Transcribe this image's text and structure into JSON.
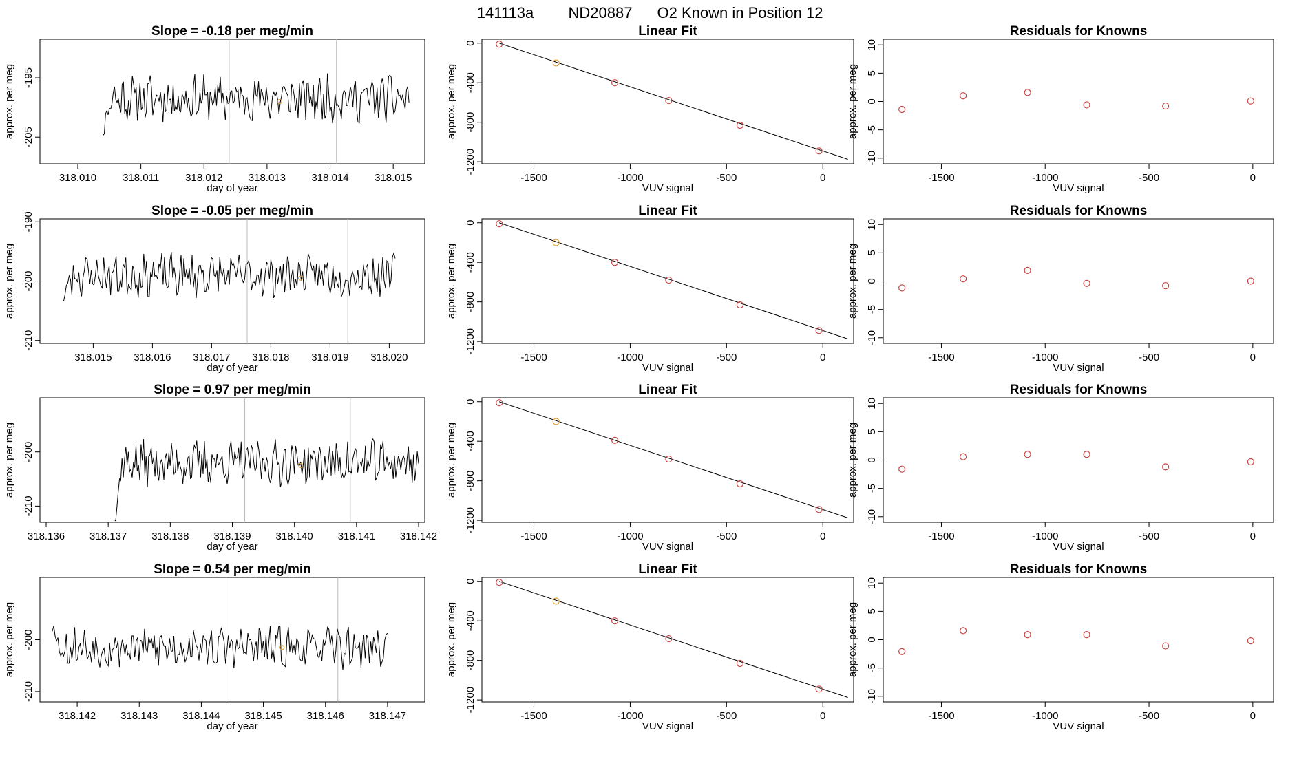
{
  "figure": {
    "title_run": "141113a",
    "title_tank": "ND20887",
    "title_desc": "O2 Known in Position  12"
  },
  "chart_data": [
    {
      "type": "line",
      "row": 0,
      "panel": "drift",
      "title": "Slope =  -0.18  per meg/min",
      "xlabel": "day of year",
      "ylabel": "approx. per meg",
      "xlim": [
        318.0094,
        318.0155
      ],
      "ylim": [
        -209.5,
        -188.5
      ],
      "xticks": [
        "318.010",
        "318.011",
        "318.012",
        "318.013",
        "318.014",
        "318.015"
      ],
      "yticks": [
        "-205",
        "-195"
      ],
      "vlines": [
        318.0124,
        318.0141
      ],
      "marker": {
        "x": 318.0132,
        "y": -199.0
      },
      "series": [
        {
          "x_start": 318.0104,
          "x_end": 318.01525,
          "mean": -198.5,
          "amp": 3.2,
          "start_y": -204,
          "seed": 11
        }
      ]
    },
    {
      "type": "scatter",
      "row": 0,
      "panel": "fit",
      "title": "Linear Fit",
      "xlabel": "VUV signal",
      "ylabel": "approx. per meg",
      "xlim": [
        -1770,
        160
      ],
      "ylim": [
        -1220,
        40
      ],
      "xticks": [
        "-1500",
        "-1000",
        "-500",
        "0"
      ],
      "yticks": [
        "0",
        "-400",
        "-800",
        "-1200"
      ],
      "line": {
        "x0": -1680,
        "y0": 0,
        "x1": 130,
        "y1": -1175
      },
      "points": [
        {
          "x": -1680,
          "y": -10,
          "color": "#cc4444"
        },
        {
          "x": -1385,
          "y": -200,
          "color": "#e0a030"
        },
        {
          "x": -1080,
          "y": -400,
          "color": "#cc4444"
        },
        {
          "x": -800,
          "y": -580,
          "color": "#cc4444"
        },
        {
          "x": -430,
          "y": -830,
          "color": "#cc4444"
        },
        {
          "x": -20,
          "y": -1090,
          "color": "#cc4444"
        }
      ]
    },
    {
      "type": "scatter",
      "row": 0,
      "panel": "resid",
      "title": "Residuals for Knowns",
      "xlabel": "VUV signal",
      "ylabel": "approx. per meg",
      "xlim": [
        -1780,
        100
      ],
      "ylim": [
        -11,
        11
      ],
      "xticks": [
        "-1500",
        "-1000",
        "-500",
        "0"
      ],
      "yticks": [
        "-10",
        "-5",
        "0",
        "5",
        "10"
      ],
      "points": [
        {
          "x": -1690,
          "y": -1.4,
          "color": "#cc4444"
        },
        {
          "x": -1395,
          "y": 1.0,
          "color": "#cc4444"
        },
        {
          "x": -1085,
          "y": 1.6,
          "color": "#cc4444"
        },
        {
          "x": -800,
          "y": -0.6,
          "color": "#cc4444"
        },
        {
          "x": -420,
          "y": -0.8,
          "color": "#cc4444"
        },
        {
          "x": -10,
          "y": 0.1,
          "color": "#cc4444"
        }
      ]
    },
    {
      "type": "line",
      "row": 1,
      "panel": "drift",
      "title": "Slope =  -0.05  per meg/min",
      "xlabel": "day of year",
      "ylabel": "approx. per meg",
      "xlim": [
        318.0141,
        318.0206
      ],
      "ylim": [
        -210.5,
        -189.5
      ],
      "xticks": [
        "318.015",
        "318.016",
        "318.017",
        "318.018",
        "318.019",
        "318.020"
      ],
      "yticks": [
        "-210",
        "-200",
        "-190"
      ],
      "vlines": [
        318.0176,
        318.0193
      ],
      "marker": {
        "x": 318.0185,
        "y": -199.5
      },
      "series": [
        {
          "x_start": 318.0145,
          "x_end": 318.0201,
          "mean": -199.0,
          "amp": 3.0,
          "start_y": -203,
          "seed": 23
        }
      ]
    },
    {
      "type": "scatter",
      "row": 1,
      "panel": "fit",
      "title": "Linear Fit",
      "xlabel": "VUV signal",
      "ylabel": "approx. per meg",
      "xlim": [
        -1770,
        160
      ],
      "ylim": [
        -1220,
        40
      ],
      "xticks": [
        "-1500",
        "-1000",
        "-500",
        "0"
      ],
      "yticks": [
        "0",
        "-400",
        "-800",
        "-1200"
      ],
      "line": {
        "x0": -1680,
        "y0": 0,
        "x1": 130,
        "y1": -1175
      },
      "points": [
        {
          "x": -1680,
          "y": -10,
          "color": "#cc4444"
        },
        {
          "x": -1385,
          "y": -200,
          "color": "#e0a030"
        },
        {
          "x": -1080,
          "y": -400,
          "color": "#cc4444"
        },
        {
          "x": -800,
          "y": -580,
          "color": "#cc4444"
        },
        {
          "x": -430,
          "y": -830,
          "color": "#cc4444"
        },
        {
          "x": -20,
          "y": -1090,
          "color": "#cc4444"
        }
      ]
    },
    {
      "type": "scatter",
      "row": 1,
      "panel": "resid",
      "title": "Residuals for Knowns",
      "xlabel": "VUV signal",
      "ylabel": "approx. per meg",
      "xlim": [
        -1780,
        100
      ],
      "ylim": [
        -11,
        11
      ],
      "xticks": [
        "-1500",
        "-1000",
        "-500",
        "0"
      ],
      "yticks": [
        "-10",
        "-5",
        "0",
        "5",
        "10"
      ],
      "points": [
        {
          "x": -1690,
          "y": -1.2,
          "color": "#cc4444"
        },
        {
          "x": -1395,
          "y": 0.4,
          "color": "#cc4444"
        },
        {
          "x": -1085,
          "y": 1.9,
          "color": "#cc4444"
        },
        {
          "x": -800,
          "y": -0.4,
          "color": "#cc4444"
        },
        {
          "x": -420,
          "y": -0.8,
          "color": "#cc4444"
        },
        {
          "x": -10,
          "y": 0.0,
          "color": "#cc4444"
        }
      ]
    },
    {
      "type": "line",
      "row": 2,
      "panel": "drift",
      "title": "Slope =  0.97  per meg/min",
      "xlabel": "day of year",
      "ylabel": "approx. per meg",
      "xlim": [
        318.1359,
        318.1421
      ],
      "ylim": [
        -213,
        -190
      ],
      "xticks": [
        "318.136",
        "318.137",
        "318.138",
        "318.139",
        "318.140",
        "318.141",
        "318.142"
      ],
      "yticks": [
        "-210",
        "-200"
      ],
      "vlines": [
        318.1392,
        318.1409
      ],
      "marker": {
        "x": 318.1401,
        "y": -202.5
      },
      "series": [
        {
          "x_start": 318.1371,
          "x_end": 318.142,
          "mean": -202.0,
          "amp": 3.4,
          "start_y": -213,
          "seed": 37
        }
      ]
    },
    {
      "type": "scatter",
      "row": 2,
      "panel": "fit",
      "title": "Linear Fit",
      "xlabel": "VUV signal",
      "ylabel": "approx. per meg",
      "xlim": [
        -1770,
        160
      ],
      "ylim": [
        -1220,
        40
      ],
      "xticks": [
        "-1500",
        "-1000",
        "-500",
        "0"
      ],
      "yticks": [
        "0",
        "-400",
        "-800",
        "-1200"
      ],
      "line": {
        "x0": -1680,
        "y0": 0,
        "x1": 130,
        "y1": -1175
      },
      "points": [
        {
          "x": -1680,
          "y": -10,
          "color": "#cc4444"
        },
        {
          "x": -1385,
          "y": -200,
          "color": "#e0a030"
        },
        {
          "x": -1080,
          "y": -390,
          "color": "#cc4444"
        },
        {
          "x": -800,
          "y": -580,
          "color": "#cc4444"
        },
        {
          "x": -430,
          "y": -830,
          "color": "#cc4444"
        },
        {
          "x": -20,
          "y": -1090,
          "color": "#cc4444"
        }
      ]
    },
    {
      "type": "scatter",
      "row": 2,
      "panel": "resid",
      "title": "Residuals for Knowns",
      "xlabel": "VUV signal",
      "ylabel": "approx. per meg",
      "xlim": [
        -1780,
        100
      ],
      "ylim": [
        -11,
        11
      ],
      "xticks": [
        "-1500",
        "-1000",
        "-500",
        "0"
      ],
      "yticks": [
        "-10",
        "-5",
        "0",
        "5",
        "10"
      ],
      "points": [
        {
          "x": -1690,
          "y": -1.6,
          "color": "#cc4444"
        },
        {
          "x": -1395,
          "y": 0.6,
          "color": "#cc4444"
        },
        {
          "x": -1085,
          "y": 1.0,
          "color": "#cc4444"
        },
        {
          "x": -800,
          "y": 1.0,
          "color": "#cc4444"
        },
        {
          "x": -420,
          "y": -1.2,
          "color": "#cc4444"
        },
        {
          "x": -10,
          "y": -0.3,
          "color": "#cc4444"
        }
      ]
    },
    {
      "type": "line",
      "row": 3,
      "panel": "drift",
      "title": "Slope =  0.54  per meg/min",
      "xlabel": "day of year",
      "ylabel": "approx. per meg",
      "xlim": [
        318.1414,
        318.1476
      ],
      "ylim": [
        -212,
        -188
      ],
      "xticks": [
        "318.142",
        "318.143",
        "318.144",
        "318.145",
        "318.146",
        "318.147"
      ],
      "yticks": [
        "-210",
        "-200"
      ],
      "vlines": [
        318.1444,
        318.1462
      ],
      "marker": {
        "x": 318.1453,
        "y": -201.5
      },
      "series": [
        {
          "x_start": 318.1416,
          "x_end": 318.147,
          "mean": -201.5,
          "amp": 3.3,
          "start_y": -197,
          "seed": 53
        }
      ]
    },
    {
      "type": "scatter",
      "row": 3,
      "panel": "fit",
      "title": "Linear Fit",
      "xlabel": "VUV signal",
      "ylabel": "approx. per meg",
      "xlim": [
        -1770,
        160
      ],
      "ylim": [
        -1220,
        40
      ],
      "xticks": [
        "-1500",
        "-1000",
        "-500",
        "0"
      ],
      "yticks": [
        "0",
        "-400",
        "-800",
        "-1200"
      ],
      "line": {
        "x0": -1680,
        "y0": 0,
        "x1": 130,
        "y1": -1175
      },
      "points": [
        {
          "x": -1680,
          "y": -10,
          "color": "#cc4444"
        },
        {
          "x": -1385,
          "y": -200,
          "color": "#e0a030"
        },
        {
          "x": -1080,
          "y": -400,
          "color": "#cc4444"
        },
        {
          "x": -800,
          "y": -580,
          "color": "#cc4444"
        },
        {
          "x": -430,
          "y": -830,
          "color": "#cc4444"
        },
        {
          "x": -20,
          "y": -1090,
          "color": "#cc4444"
        }
      ]
    },
    {
      "type": "scatter",
      "row": 3,
      "panel": "resid",
      "title": "Residuals for Knowns",
      "xlabel": "VUV signal",
      "ylabel": "approx. per meg",
      "xlim": [
        -1780,
        100
      ],
      "ylim": [
        -11,
        11
      ],
      "xticks": [
        "-1500",
        "-1000",
        "-500",
        "0"
      ],
      "yticks": [
        "-10",
        "-5",
        "0",
        "5",
        "10"
      ],
      "points": [
        {
          "x": -1690,
          "y": -2.1,
          "color": "#cc4444"
        },
        {
          "x": -1395,
          "y": 1.6,
          "color": "#cc4444"
        },
        {
          "x": -1085,
          "y": 0.9,
          "color": "#cc4444"
        },
        {
          "x": -800,
          "y": 0.9,
          "color": "#cc4444"
        },
        {
          "x": -420,
          "y": -1.1,
          "color": "#cc4444"
        },
        {
          "x": -10,
          "y": -0.2,
          "color": "#cc4444"
        }
      ]
    }
  ]
}
